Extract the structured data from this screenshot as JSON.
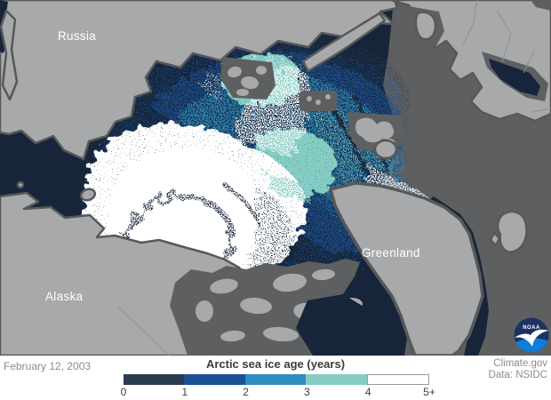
{
  "map": {
    "region_labels": {
      "russia": "Russia",
      "alaska": "Alaska",
      "greenland": "Greenland"
    },
    "colors": {
      "ocean": "#16253a",
      "land": "#a8a9ab",
      "land_outline": "#57585a",
      "outside_domain": "#5e5f61",
      "country_border": "#8f9092"
    }
  },
  "legend": {
    "title": "Arctic sea ice age (years)",
    "ticks": [
      "0",
      "1",
      "2",
      "3",
      "4",
      "5+"
    ],
    "bins": [
      {
        "label": "0-1",
        "color": "#2c3c50",
        "border": false
      },
      {
        "label": "1-2",
        "color": "#1a5193",
        "border": false
      },
      {
        "label": "2-3",
        "color": "#2f8dc0",
        "border": false
      },
      {
        "label": "3-4",
        "color": "#85cdc3",
        "border": false
      },
      {
        "label": "4-5plus",
        "color": "#ffffff",
        "border": true
      }
    ]
  },
  "footer": {
    "date": "February 12, 2003",
    "credit_source": "Climate.gov",
    "credit_data": "Data: NSIDC"
  },
  "logo": {
    "text": "NOAA"
  }
}
